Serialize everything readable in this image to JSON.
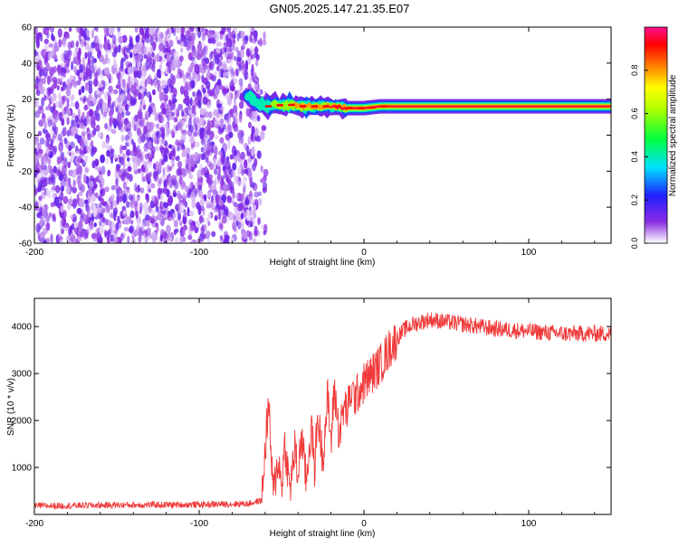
{
  "title": "GN05.2025.147.21.35.E07",
  "colorbar": {
    "label": "Normalized spectral amplitude",
    "ticks": [
      "0.0",
      "0.2",
      "0.4",
      "0.6",
      "0.8"
    ]
  },
  "chart_data": [
    {
      "type": "heatmap",
      "xlabel": "Height of straight line (km)",
      "ylabel": "Frequency (Hz)",
      "xlim": [
        -200,
        150
      ],
      "ylim": [
        -60,
        60
      ],
      "xticks": [
        "-200",
        "-100",
        "0",
        "100"
      ],
      "yticks": [
        "-60",
        "-40",
        "-20",
        "0",
        "20",
        "40",
        "60"
      ],
      "noise_region_x": [
        -200,
        -65
      ],
      "ridge": {
        "x": [
          -70,
          -65,
          -60,
          -55,
          -50,
          -45,
          -40,
          -30,
          -20,
          -10,
          0,
          10,
          20,
          50,
          100,
          150
        ],
        "frequency": [
          22,
          18,
          16,
          17,
          16,
          17,
          16,
          16,
          16,
          15,
          15,
          16,
          16,
          16,
          16,
          16
        ],
        "amplitude": [
          0.4,
          0.45,
          0.5,
          0.55,
          0.6,
          0.7,
          0.8,
          0.85,
          0.9,
          0.9,
          0.9,
          0.95,
          0.95,
          1.0,
          1.0,
          1.0
        ]
      },
      "colorbar_range": [
        0,
        1
      ]
    },
    {
      "type": "line",
      "xlabel": "Height of straight line (km)",
      "ylabel": "SNR (10 * v/v)",
      "xlim": [
        -200,
        150
      ],
      "ylim": [
        0,
        4600
      ],
      "xticks": [
        "-200",
        "-100",
        "0",
        "100"
      ],
      "yticks": [
        "1000",
        "2000",
        "3000",
        "4000"
      ],
      "color": "#f03a3a",
      "series": [
        {
          "x": [
            -200,
            -150,
            -100,
            -70,
            -62,
            -58,
            -55,
            -52,
            -50,
            -48,
            -45,
            -42,
            -40,
            -38,
            -35,
            -32,
            -30,
            -28,
            -25,
            -22,
            -20,
            -18,
            -15,
            -12,
            -10,
            -8,
            -5,
            -2,
            0,
            5,
            10,
            15,
            20,
            25,
            30,
            35,
            40,
            50,
            60,
            80,
            100,
            120,
            150
          ],
          "values": [
            180,
            200,
            210,
            230,
            300,
            2400,
            400,
            1200,
            600,
            1500,
            500,
            1400,
            800,
            1700,
            700,
            1900,
            1000,
            2100,
            1200,
            2500,
            1500,
            2700,
            1700,
            2300,
            2200,
            2600,
            2500,
            2700,
            2800,
            3000,
            3200,
            3500,
            3750,
            3950,
            4050,
            4100,
            4150,
            4100,
            4050,
            3950,
            3900,
            3850,
            3850
          ]
        }
      ]
    }
  ]
}
